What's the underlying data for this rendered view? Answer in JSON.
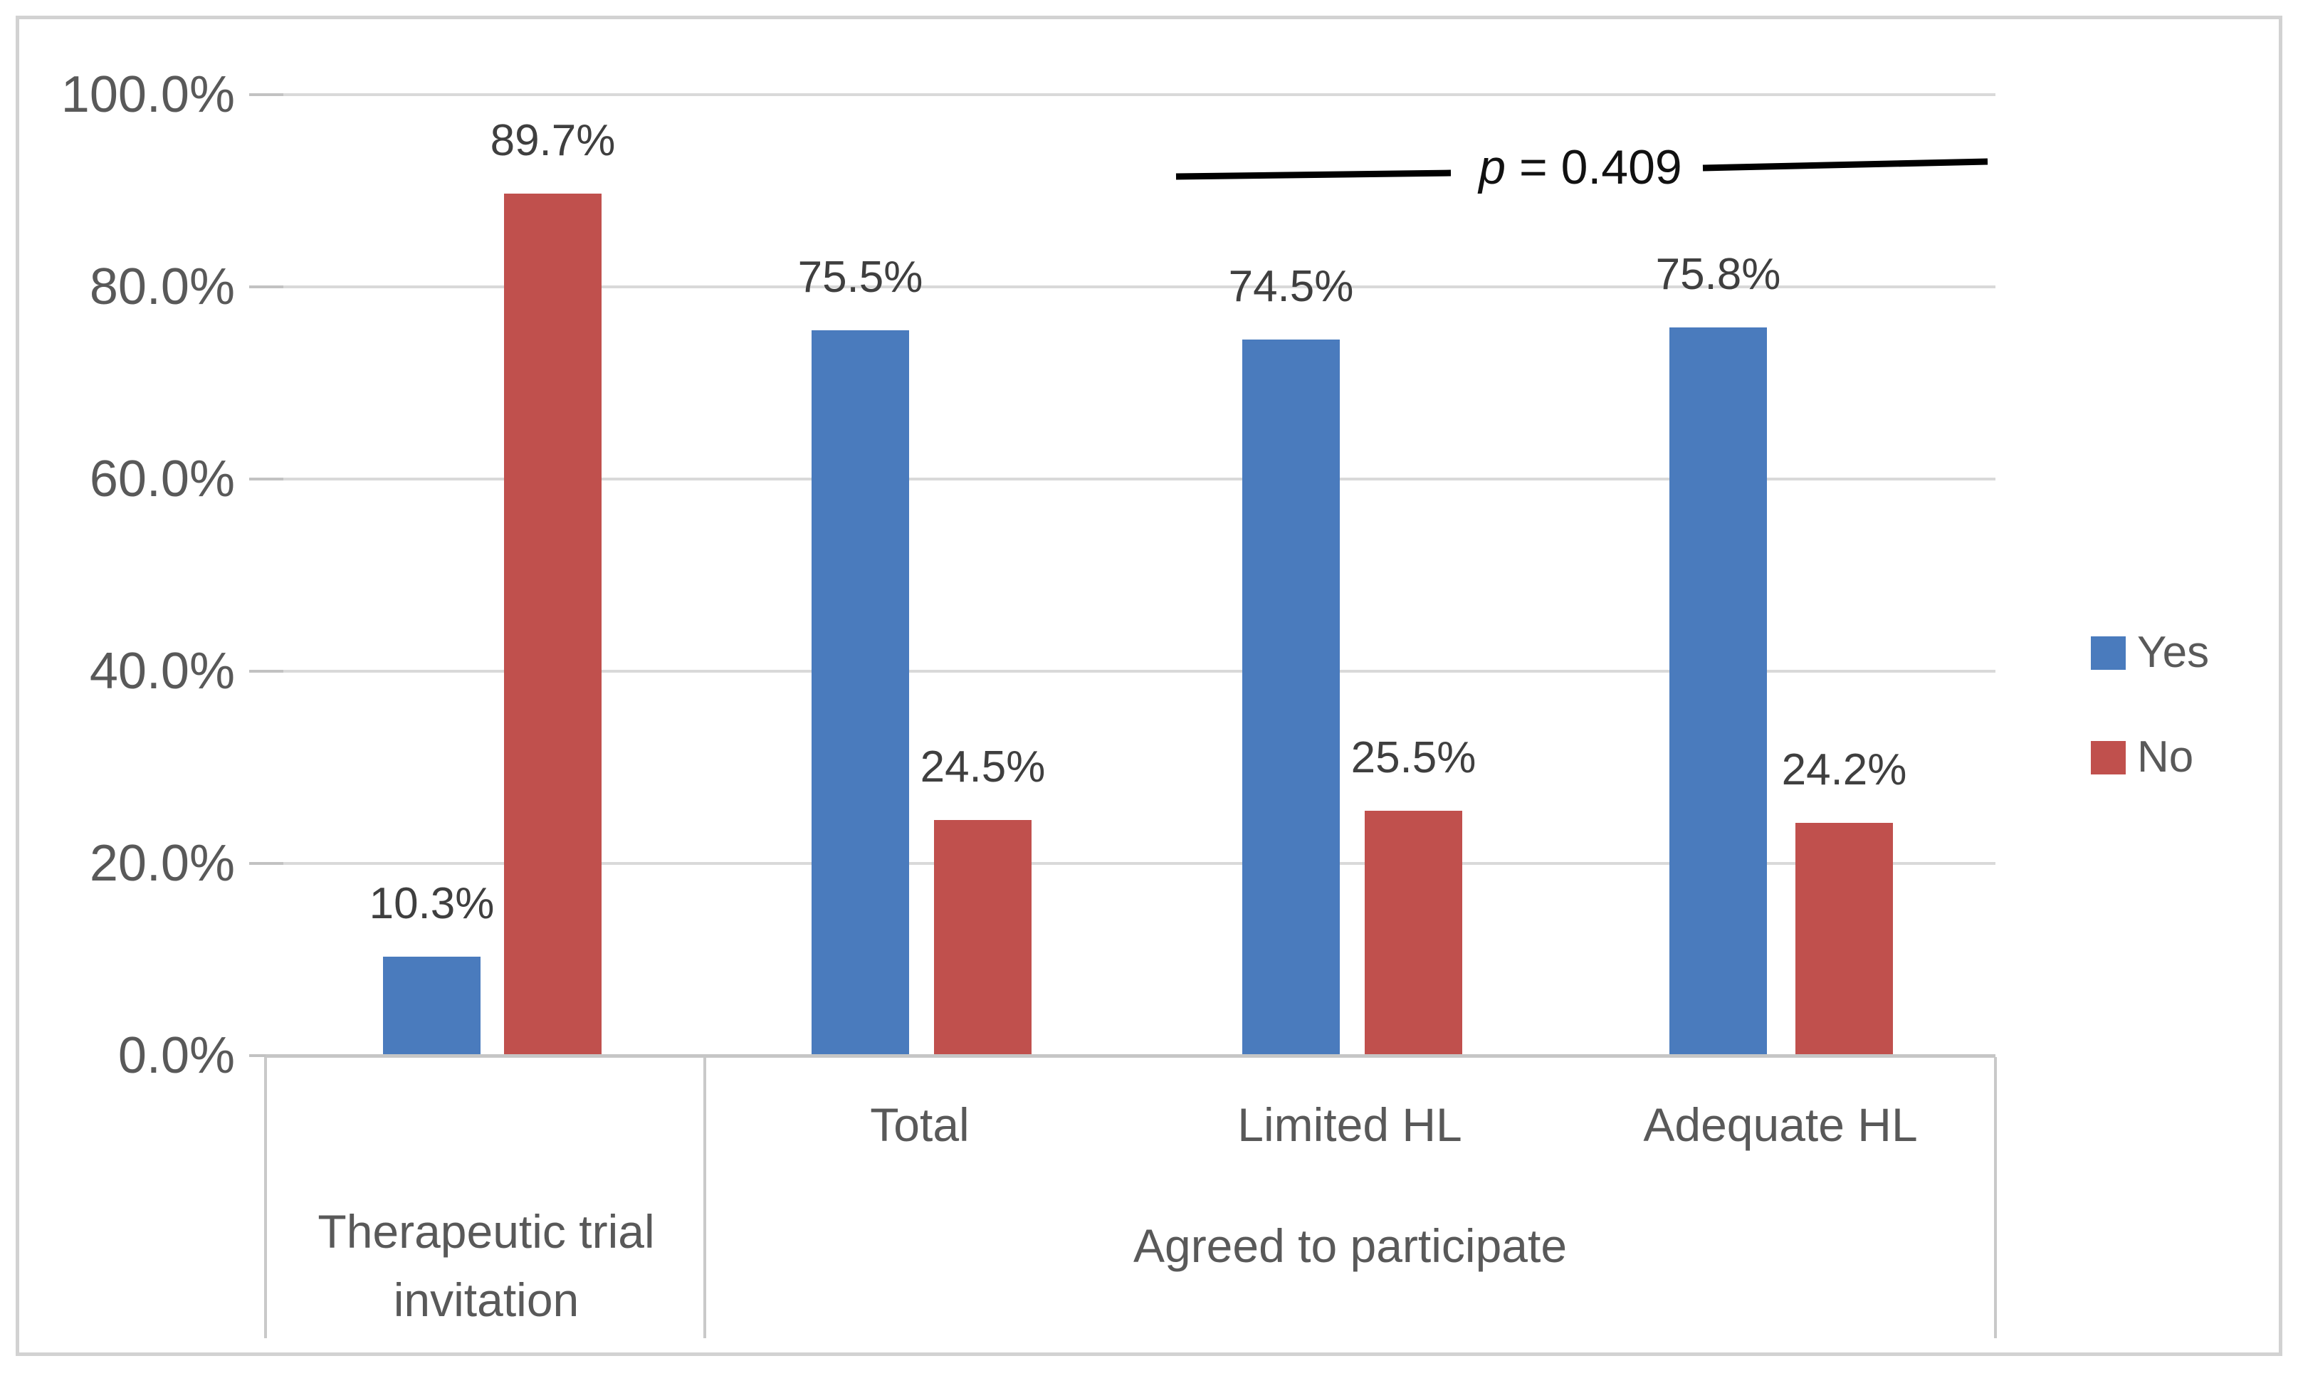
{
  "figure": {
    "background": "#ffffff",
    "border_color": "#d2d2d2"
  },
  "chart_data": {
    "type": "bar",
    "title": "",
    "y_axis": {
      "range": [
        0,
        100
      ],
      "gridlines": true,
      "ticks": [
        {
          "value": 100,
          "label": "100.0%"
        },
        {
          "value": 80,
          "label": "80.0%"
        },
        {
          "value": 60,
          "label": "60.0%"
        },
        {
          "value": 40,
          "label": "40.0%"
        },
        {
          "value": 20,
          "label": "20.0%"
        },
        {
          "value": 0,
          "label": "0.0%"
        }
      ]
    },
    "x_axis": {
      "level1": [
        "Therapeutic trial invitation",
        "Total",
        "Limited HL",
        "Adequate HL"
      ],
      "level2_group": {
        "label": "Agreed to participate",
        "spans": [
          "Total",
          "Limited HL",
          "Adequate HL"
        ]
      }
    },
    "series": [
      {
        "name": "Yes",
        "color": "#4a7bbd",
        "values": [
          10.3,
          75.5,
          74.5,
          75.8
        ],
        "labels": [
          "10.3%",
          "75.5%",
          "74.5%",
          "75.8%"
        ]
      },
      {
        "name": "No",
        "color": "#c0504d",
        "values": [
          89.7,
          24.5,
          25.5,
          24.2
        ],
        "labels": [
          "89.7%",
          "24.5%",
          "25.5%",
          "24.2%"
        ]
      }
    ],
    "annotation": {
      "text": "p = 0.409",
      "p_symbol": "p",
      "p_rest": " = 0.409"
    },
    "legend": {
      "position": "right",
      "items": [
        {
          "label": "Yes",
          "color": "#4a7bbd"
        },
        {
          "label": "No",
          "color": "#c0504d"
        }
      ]
    }
  }
}
